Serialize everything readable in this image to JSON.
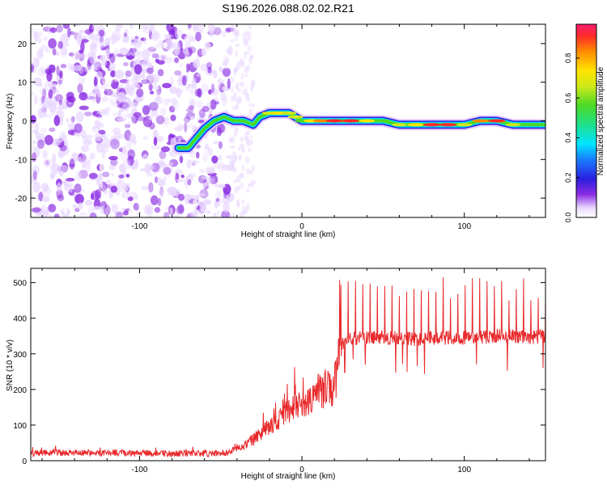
{
  "title": "S196.2026.088.02.02.R21",
  "colors": {
    "axis": "#000000",
    "snr_line": "#e8282a",
    "spec_noise": "#8a2be2",
    "spec_trace_core": "#e8282a"
  },
  "colorbar": {
    "label": "Normalized spectral amplitude",
    "ticks": [
      {
        "value": 0.0,
        "label": "0.0"
      },
      {
        "value": 0.2,
        "label": "0.2"
      },
      {
        "value": 0.4,
        "label": "0.4"
      },
      {
        "value": 0.6,
        "label": "0.6"
      },
      {
        "value": 0.8,
        "label": "0.8"
      }
    ],
    "range": [
      0,
      0.97
    ]
  },
  "chart_data": [
    {
      "type": "heatmap",
      "name": "spectrogram",
      "xlabel": "Height of straight line (km)",
      "ylabel": "Frequency (Hz)",
      "xlim": [
        -167,
        150
      ],
      "ylim": [
        -25,
        25
      ],
      "xticks": [
        {
          "value": -100,
          "label": "-100"
        },
        {
          "value": 0,
          "label": "0"
        },
        {
          "value": 100,
          "label": "100"
        }
      ],
      "yticks": [
        {
          "value": -20,
          "label": "-20"
        },
        {
          "value": -10,
          "label": "-10"
        },
        {
          "value": 0,
          "label": "0"
        },
        {
          "value": 10,
          "label": "10"
        },
        {
          "value": 20,
          "label": "20"
        }
      ],
      "noise_region_x": [
        -167,
        -44
      ],
      "trace": {
        "x": [
          -76,
          -70,
          -66,
          -60,
          -54,
          -48,
          -42,
          -36,
          -30,
          -26,
          -20,
          -14,
          -8,
          -4,
          0,
          6,
          12,
          20,
          30,
          40,
          50,
          60,
          70,
          80,
          90,
          100,
          110,
          120,
          130,
          140,
          150
        ],
        "y": [
          -7,
          -7,
          -5,
          -2,
          0,
          1,
          0,
          0,
          -1,
          1,
          2,
          2,
          2,
          1,
          0,
          0,
          0,
          0,
          0,
          0,
          0,
          -1,
          -1,
          -1,
          -1,
          -1,
          0,
          0,
          -1,
          -1,
          -1
        ],
        "amplitude": [
          0.4,
          0.45,
          0.35,
          0.3,
          0.4,
          0.35,
          0.3,
          0.3,
          0.35,
          0.5,
          0.75,
          0.8,
          0.7,
          0.75,
          0.6,
          0.8,
          0.9,
          0.95,
          0.95,
          0.8,
          0.65,
          0.7,
          0.85,
          0.95,
          0.95,
          0.75,
          0.9,
          0.95,
          0.75,
          0.55,
          0.45
        ]
      }
    },
    {
      "type": "line",
      "name": "snr",
      "xlabel": "Height of straight line (km)",
      "ylabel": "SNR (10 * v/v)",
      "xlim": [
        -167,
        150
      ],
      "ylim": [
        0,
        540
      ],
      "xticks": [
        {
          "value": -100,
          "label": "-100"
        },
        {
          "value": 0,
          "label": "0"
        },
        {
          "value": 100,
          "label": "100"
        }
      ],
      "yticks": [
        {
          "value": 0,
          "label": "0"
        },
        {
          "value": 100,
          "label": "100"
        },
        {
          "value": 200,
          "label": "200"
        },
        {
          "value": 300,
          "label": "300"
        },
        {
          "value": 400,
          "label": "400"
        },
        {
          "value": 500,
          "label": "500"
        }
      ],
      "series": [
        {
          "name": "SNR",
          "x": [
            -167,
            -140,
            -110,
            -80,
            -60,
            -50,
            -45,
            -40,
            -35,
            -30,
            -25,
            -20,
            -15,
            -10,
            -5,
            0,
            5,
            10,
            15,
            20,
            22,
            25,
            30,
            40,
            50,
            60,
            70,
            80,
            90,
            100,
            110,
            120,
            130,
            140,
            150
          ],
          "y": [
            22,
            22,
            22,
            20,
            20,
            20,
            25,
            35,
            45,
            60,
            75,
            95,
            110,
            130,
            150,
            155,
            170,
            195,
            205,
            210,
            260,
            330,
            345,
            345,
            345,
            345,
            340,
            345,
            345,
            345,
            345,
            350,
            350,
            345,
            350
          ],
          "spike_spacing": 4.5,
          "spike_start": 24,
          "spike_peak": 470
        }
      ]
    }
  ]
}
